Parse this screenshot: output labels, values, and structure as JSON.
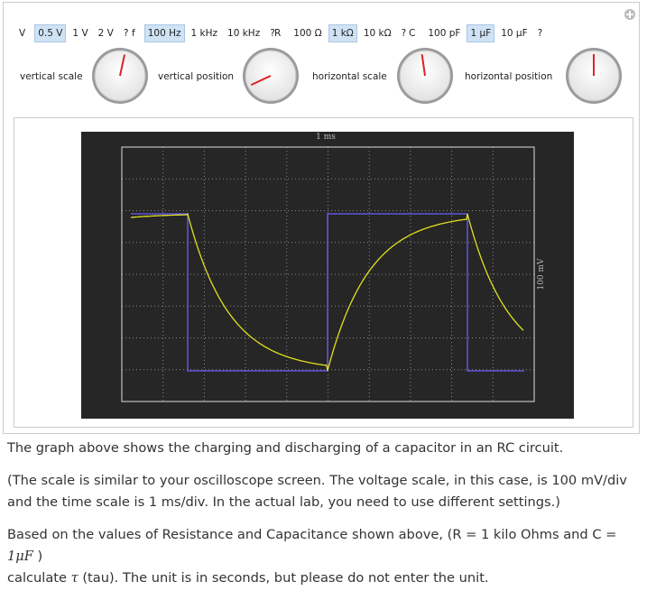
{
  "controls": [
    {
      "label": "V",
      "options": [
        "0.5 V",
        "1 V",
        "2 V",
        "?"
      ],
      "selected": 0
    },
    {
      "label": "f",
      "options": [
        "100 Hz",
        "1 kHz",
        "10 kHz",
        "?"
      ],
      "selected": 0
    },
    {
      "label": "R",
      "options": [
        "100 Ω",
        "1 kΩ",
        "10 kΩ",
        "?"
      ],
      "selected": 1
    },
    {
      "label": "C",
      "options": [
        "100 pF",
        "1 μF",
        "10 μF",
        "?"
      ],
      "selected": 1
    }
  ],
  "knobs": [
    "vertical scale",
    "vertical position",
    "horizontal scale",
    "horizontal position"
  ],
  "scope": {
    "x_label": "1 ms",
    "y_label": "100 mV"
  },
  "text": {
    "p1": "The graph above shows the charging and discharging of a capacitor in an RC circuit.",
    "p2": "(The scale is similar to your oscilloscope screen. The voltage scale, in this case, is 100 mV/div and the time scale is 1 ms/div. In the actual lab, you need to use different settings.)",
    "p3_a": "Based on the values of Resistance and Capacitance shown above, (R = 1 kilo Ohms and C = ",
    "p3_math": "1μF",
    "p3_b": ")",
    "p3_c": "calculate ",
    "tau": "τ",
    "p3_d": " (tau). The unit is in seconds, but please do not enter the unit."
  }
}
